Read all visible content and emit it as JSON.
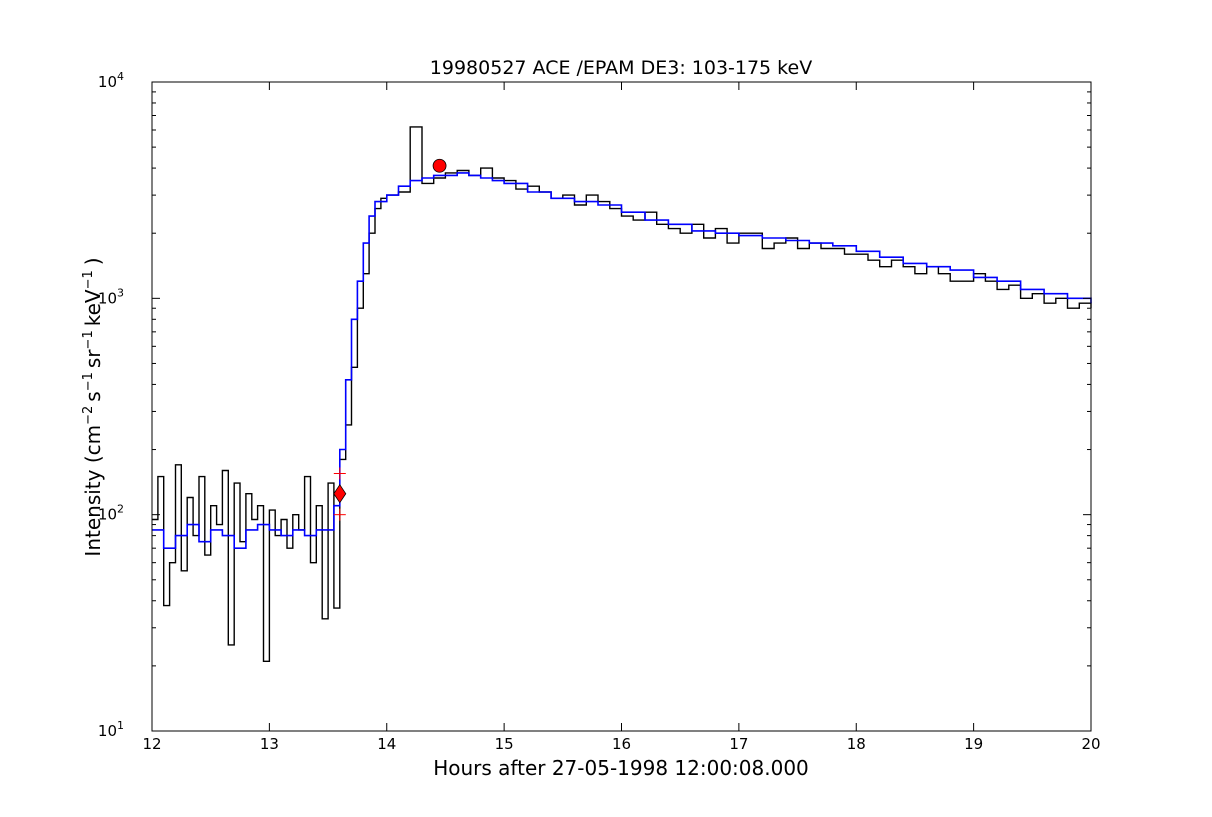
{
  "chart_data": {
    "type": "line",
    "title": "19980527 ACE /EPAM DE3: 103-175 keV",
    "xlabel": "Hours after 27-05-1998 12:00:08.000",
    "ylabel": {
      "prefix": "Intensity (cm",
      "exp_cm": "−2",
      "s": "s",
      "exp_s": "−1",
      "sr": "sr",
      "exp_sr": "−1",
      "kev": "keV",
      "exp_kev": "−1",
      "suffix": ")"
    },
    "x_scale": "linear",
    "y_scale": "log",
    "xlim": [
      12,
      20
    ],
    "ylim": [
      10,
      10000
    ],
    "x_ticks": [
      "12",
      "13",
      "14",
      "15",
      "16",
      "17",
      "18",
      "19",
      "20"
    ],
    "y_ticks": [
      {
        "base": "10",
        "exp": "1"
      },
      {
        "base": "10",
        "exp": "2"
      },
      {
        "base": "10",
        "exp": "3"
      },
      {
        "base": "10",
        "exp": "4"
      }
    ],
    "grid": false,
    "legend": "none",
    "colors": {
      "raw": "#000000",
      "smoothed": "#0000ff",
      "markers": "#ff0000"
    },
    "series": [
      {
        "style": "raw",
        "x": [
          12.0,
          12.05,
          12.1,
          12.15,
          12.2,
          12.25,
          12.3,
          12.35,
          12.4,
          12.45,
          12.5,
          12.55,
          12.6,
          12.65,
          12.7,
          12.75,
          12.8,
          12.85,
          12.9,
          12.95,
          13.0,
          13.05,
          13.1,
          13.15,
          13.2,
          13.25,
          13.3,
          13.35,
          13.4,
          13.45,
          13.5,
          13.55,
          13.6,
          13.65,
          13.7,
          13.75,
          13.8,
          13.85,
          13.9,
          13.95,
          14.0,
          14.1,
          14.2,
          14.3,
          14.4,
          14.5,
          14.6,
          14.7,
          14.8,
          14.9,
          15.0,
          15.1,
          15.2,
          15.3,
          15.4,
          15.5,
          15.6,
          15.7,
          15.8,
          15.9,
          16.0,
          16.1,
          16.2,
          16.3,
          16.4,
          16.5,
          16.6,
          16.7,
          16.8,
          16.9,
          17.0,
          17.1,
          17.2,
          17.3,
          17.4,
          17.5,
          17.6,
          17.7,
          17.8,
          17.9,
          18.0,
          18.1,
          18.2,
          18.3,
          18.4,
          18.5,
          18.6,
          18.7,
          18.8,
          18.9,
          19.0,
          19.1,
          19.2,
          19.3,
          19.4,
          19.5,
          19.6,
          19.7,
          19.8,
          19.9,
          20.0
        ],
        "y": [
          95,
          150,
          38,
          60,
          170,
          55,
          120,
          80,
          150,
          65,
          110,
          90,
          160,
          25,
          140,
          75,
          125,
          95,
          110,
          21,
          105,
          80,
          95,
          70,
          100,
          85,
          150,
          60,
          110,
          33,
          140,
          37,
          180,
          260,
          480,
          900,
          1300,
          2000,
          2600,
          2900,
          3000,
          3100,
          6200,
          3400,
          3600,
          3800,
          3900,
          3700,
          4000,
          3600,
          3500,
          3200,
          3300,
          3100,
          2900,
          3000,
          2700,
          3000,
          2800,
          2600,
          2400,
          2300,
          2500,
          2200,
          2100,
          2000,
          2200,
          1900,
          2100,
          1800,
          2000,
          2000,
          1700,
          1800,
          1900,
          1700,
          1800,
          1700,
          1700,
          1600,
          1600,
          1500,
          1400,
          1500,
          1400,
          1300,
          1400,
          1300,
          1200,
          1200,
          1300,
          1200,
          1100,
          1150,
          1000,
          1050,
          950,
          1000,
          900,
          950,
          900
        ]
      },
      {
        "style": "smoothed",
        "x": [
          12.0,
          12.1,
          12.2,
          12.3,
          12.4,
          12.5,
          12.6,
          12.7,
          12.8,
          12.9,
          13.0,
          13.1,
          13.2,
          13.3,
          13.4,
          13.5,
          13.55,
          13.6,
          13.65,
          13.7,
          13.75,
          13.8,
          13.85,
          13.9,
          14.0,
          14.1,
          14.2,
          14.3,
          14.4,
          14.5,
          14.6,
          14.7,
          14.8,
          14.9,
          15.0,
          15.2,
          15.4,
          15.6,
          15.8,
          16.0,
          16.2,
          16.4,
          16.6,
          16.8,
          17.0,
          17.2,
          17.4,
          17.6,
          17.8,
          18.0,
          18.2,
          18.4,
          18.6,
          18.8,
          19.0,
          19.2,
          19.4,
          19.6,
          19.8,
          20.0
        ],
        "y": [
          85,
          70,
          80,
          90,
          75,
          85,
          80,
          70,
          85,
          90,
          85,
          80,
          85,
          80,
          85,
          85,
          110,
          200,
          420,
          800,
          1200,
          1800,
          2400,
          2800,
          3000,
          3300,
          3500,
          3600,
          3700,
          3700,
          3800,
          3700,
          3600,
          3500,
          3400,
          3100,
          2900,
          2800,
          2700,
          2500,
          2300,
          2200,
          2050,
          2000,
          1950,
          1900,
          1850,
          1800,
          1750,
          1650,
          1550,
          1450,
          1400,
          1350,
          1250,
          1200,
          1100,
          1050,
          1000,
          950
        ]
      }
    ],
    "markers": [
      {
        "shape": "diamond",
        "x": 13.6,
        "y": 125
      },
      {
        "shape": "circle",
        "x": 14.45,
        "y": 4100
      },
      {
        "shape": "plus",
        "x": 13.6,
        "y": 155
      },
      {
        "shape": "plus",
        "x": 13.6,
        "y": 100
      }
    ]
  }
}
